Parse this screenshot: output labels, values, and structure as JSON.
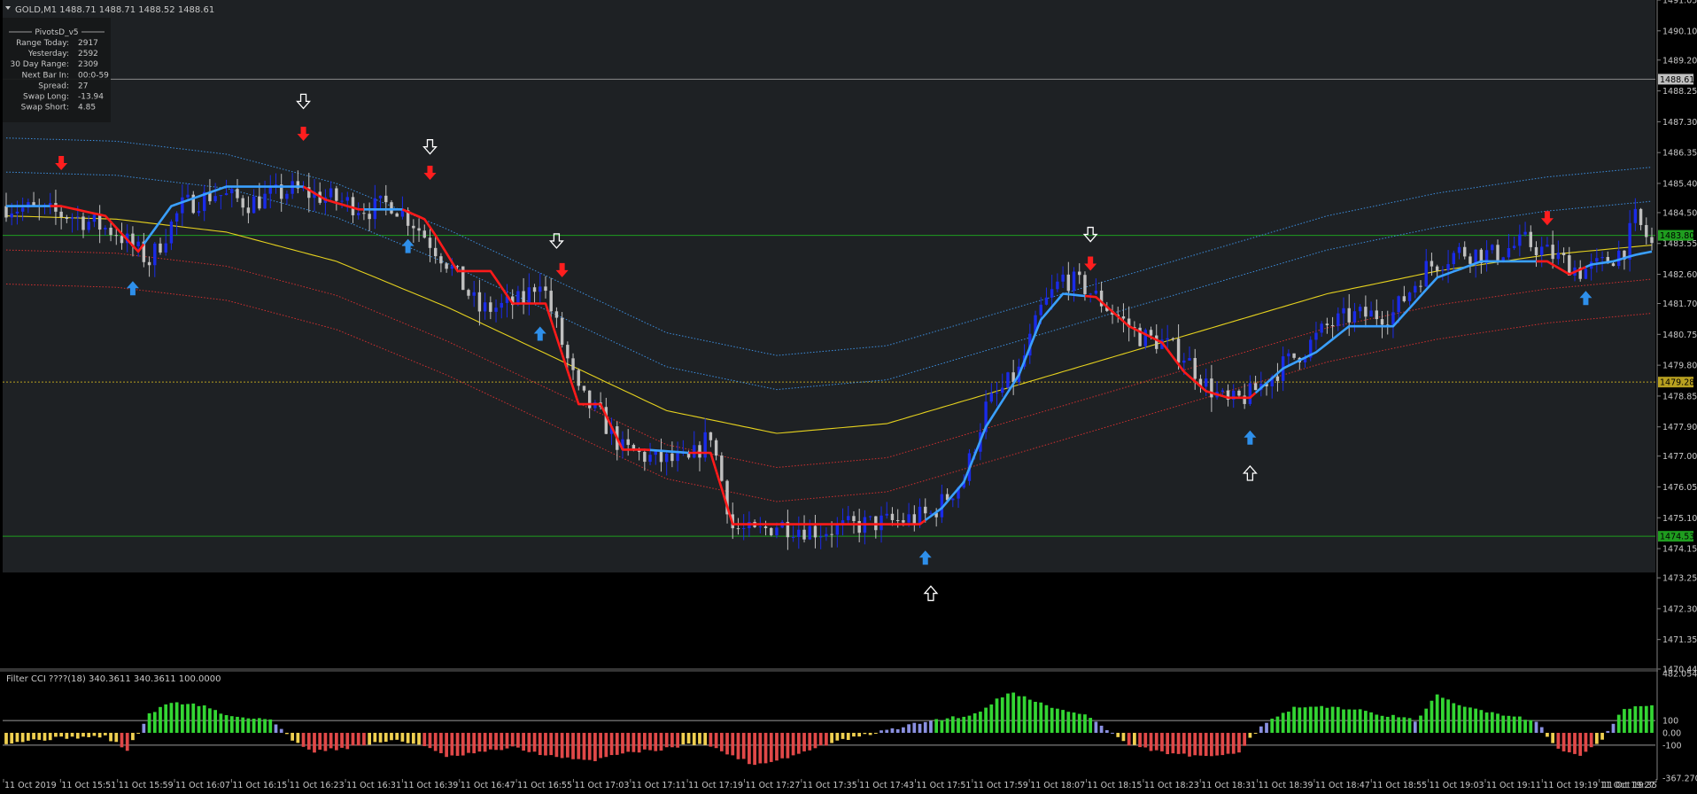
{
  "chart_data": {
    "type": "candlestick",
    "symbol_header": "GOLD,M1  1488.71 1488.71 1488.52 1488.61",
    "price_axis": {
      "range": [
        1470.44,
        1491.05
      ],
      "ticks": [
        "1491.05",
        "1490.10",
        "1489.20",
        "1488.25",
        "1487.30",
        "1486.35",
        "1485.40",
        "1484.50",
        "1483.55",
        "1482.60",
        "1481.70",
        "1480.75",
        "1479.80",
        "1478.85",
        "1477.90",
        "1477.00",
        "1476.05",
        "1475.10",
        "1474.15",
        "1473.25",
        "1472.30",
        "1471.35",
        "1470.44"
      ],
      "badges": [
        {
          "value": 1488.61,
          "label": "1488.61",
          "color": "#c0c0c0",
          "text_color": "#000000"
        },
        {
          "value": 1483.8,
          "label": "1483.80",
          "color": "#1f9d1f",
          "text_color": "#000000"
        },
        {
          "value": 1479.28,
          "label": "1479.28",
          "color": "#b8a020",
          "text_color": "#000000"
        },
        {
          "value": 1474.53,
          "label": "1474.53",
          "color": "#1f9d1f",
          "text_color": "#000000"
        }
      ]
    },
    "horizontal_levels": [
      {
        "value": 1488.61,
        "color": "#8a8a8a",
        "style": "solid"
      },
      {
        "value": 1483.8,
        "color": "#1f9d1f",
        "style": "solid"
      },
      {
        "value": 1479.28,
        "color": "#b8a020",
        "style": "dotted"
      },
      {
        "value": 1474.53,
        "color": "#1f9d1f",
        "style": "solid"
      }
    ],
    "pivots_panel": {
      "title": "PivotsD_v5",
      "rows": [
        {
          "label": "Range Today:",
          "value": "2917"
        },
        {
          "label": "Yesterday:",
          "value": "2592"
        },
        {
          "label": "30 Day Range:",
          "value": "2309"
        },
        {
          "label": "Next Bar In:",
          "value": "00:0-59"
        },
        {
          "label": "Spread:",
          "value": "27"
        },
        {
          "label": "Swap Long:",
          "value": "-13.94"
        },
        {
          "label": "Swap Short:",
          "value": "4.85"
        }
      ]
    },
    "time_axis": [
      "11 Oct 2019",
      "11 Oct 15:51",
      "11 Oct 15:59",
      "11 Oct 16:07",
      "11 Oct 16:15",
      "11 Oct 16:23",
      "11 Oct 16:31",
      "11 Oct 16:39",
      "11 Oct 16:47",
      "11 Oct 16:55",
      "11 Oct 17:03",
      "11 Oct 17:11",
      "11 Oct 17:19",
      "11 Oct 17:27",
      "11 Oct 17:35",
      "11 Oct 17:43",
      "11 Oct 17:51",
      "11 Oct 17:59",
      "11 Oct 18:07",
      "11 Oct 18:15",
      "11 Oct 18:23",
      "11 Oct 18:31",
      "11 Oct 18:39",
      "11 Oct 18:47",
      "11 Oct 18:55",
      "11 Oct 19:03",
      "11 Oct 19:11",
      "11 Oct 19:19",
      "11 Oct 19:27",
      "11 Oct 19:35"
    ],
    "close_path": [
      [
        0,
        1484.7
      ],
      [
        12,
        1484.4
      ],
      [
        20,
        1483.9
      ],
      [
        26,
        1483.0
      ],
      [
        32,
        1484.7
      ],
      [
        38,
        1485.1
      ],
      [
        44,
        1484.8
      ],
      [
        52,
        1485.2
      ],
      [
        60,
        1484.9
      ],
      [
        66,
        1484.6
      ],
      [
        70,
        1484.8
      ],
      [
        74,
        1484.2
      ],
      [
        80,
        1483.0
      ],
      [
        86,
        1481.5
      ],
      [
        90,
        1481.6
      ],
      [
        94,
        1481.8
      ],
      [
        97,
        1482.5
      ],
      [
        100,
        1481.0
      ],
      [
        104,
        1478.9
      ],
      [
        108,
        1478.2
      ],
      [
        112,
        1477.2
      ],
      [
        118,
        1476.9
      ],
      [
        124,
        1476.8
      ],
      [
        128,
        1477.7
      ],
      [
        132,
        1474.8
      ],
      [
        136,
        1474.6
      ],
      [
        140,
        1474.9
      ],
      [
        148,
        1474.7
      ],
      [
        156,
        1474.9
      ],
      [
        162,
        1475.0
      ],
      [
        168,
        1475.2
      ],
      [
        174,
        1476.3
      ],
      [
        178,
        1478.5
      ],
      [
        184,
        1479.6
      ],
      [
        188,
        1481.5
      ],
      [
        192,
        1482.5
      ],
      [
        196,
        1482.2
      ],
      [
        200,
        1481.6
      ],
      [
        206,
        1480.7
      ],
      [
        210,
        1480.5
      ],
      [
        214,
        1480.1
      ],
      [
        218,
        1479.2
      ],
      [
        222,
        1478.6
      ],
      [
        226,
        1478.9
      ],
      [
        232,
        1479.8
      ],
      [
        236,
        1480.3
      ],
      [
        240,
        1481.0
      ],
      [
        244,
        1481.3
      ],
      [
        252,
        1481.4
      ],
      [
        258,
        1482.8
      ],
      [
        264,
        1483.3
      ],
      [
        270,
        1483.2
      ],
      [
        276,
        1483.6
      ],
      [
        282,
        1483.1
      ],
      [
        286,
        1482.7
      ],
      [
        290,
        1482.9
      ],
      [
        294,
        1483.4
      ],
      [
        296,
        1484.3
      ],
      [
        299,
        1483.5
      ]
    ],
    "trend_line": [
      [
        0,
        1484.7
      ],
      [
        10,
        1484.7
      ],
      [
        18,
        1484.4
      ],
      [
        24,
        1483.3
      ],
      [
        30,
        1484.7
      ],
      [
        40,
        1485.3
      ],
      [
        48,
        1485.3
      ],
      [
        54,
        1485.3
      ],
      [
        58,
        1484.9
      ],
      [
        64,
        1484.6
      ],
      [
        72,
        1484.6
      ],
      [
        76,
        1484.3
      ],
      [
        78,
        1483.8
      ],
      [
        82,
        1482.7
      ],
      [
        88,
        1482.7
      ],
      [
        92,
        1481.7
      ],
      [
        98,
        1481.7
      ],
      [
        104,
        1478.6
      ],
      [
        108,
        1478.6
      ],
      [
        112,
        1477.2
      ],
      [
        116,
        1477.2
      ],
      [
        124,
        1477.1
      ],
      [
        128,
        1477.1
      ],
      [
        132,
        1474.9
      ],
      [
        140,
        1474.9
      ],
      [
        150,
        1474.9
      ],
      [
        158,
        1474.9
      ],
      [
        166,
        1474.9
      ],
      [
        170,
        1475.4
      ],
      [
        174,
        1476.2
      ],
      [
        178,
        1477.9
      ],
      [
        184,
        1479.5
      ],
      [
        188,
        1481.2
      ],
      [
        192,
        1482.0
      ],
      [
        198,
        1481.9
      ],
      [
        204,
        1481.0
      ],
      [
        210,
        1480.5
      ],
      [
        214,
        1479.6
      ],
      [
        218,
        1479.0
      ],
      [
        222,
        1478.8
      ],
      [
        226,
        1478.8
      ],
      [
        232,
        1479.7
      ],
      [
        238,
        1480.2
      ],
      [
        244,
        1481.0
      ],
      [
        252,
        1481.0
      ],
      [
        260,
        1482.5
      ],
      [
        268,
        1483.0
      ],
      [
        276,
        1483.0
      ],
      [
        280,
        1483.0
      ],
      [
        284,
        1482.6
      ],
      [
        288,
        1482.9
      ],
      [
        292,
        1483.0
      ],
      [
        296,
        1483.2
      ],
      [
        299,
        1483.3
      ]
    ],
    "trend_segments_red": [
      [
        8,
        24
      ],
      [
        54,
        64
      ],
      [
        72,
        116
      ],
      [
        124,
        166
      ],
      [
        196,
        226
      ],
      [
        278,
        286
      ]
    ],
    "ma_line": [
      [
        0,
        1484.4
      ],
      [
        20,
        1484.3
      ],
      [
        40,
        1483.9
      ],
      [
        60,
        1483.0
      ],
      [
        80,
        1481.6
      ],
      [
        100,
        1480.0
      ],
      [
        120,
        1478.4
      ],
      [
        140,
        1477.7
      ],
      [
        160,
        1478.0
      ],
      [
        180,
        1479.0
      ],
      [
        200,
        1480.0
      ],
      [
        220,
        1481.0
      ],
      [
        240,
        1482.0
      ],
      [
        260,
        1482.7
      ],
      [
        280,
        1483.2
      ],
      [
        299,
        1483.5
      ]
    ],
    "envelopes": [
      {
        "color": "#3d8fe0",
        "offset": 2.4
      },
      {
        "color": "#3d8fe0",
        "offset": 1.35
      },
      {
        "color": "#d23030",
        "offset": -1.05
      },
      {
        "color": "#d23030",
        "offset": -2.1
      }
    ],
    "arrows": [
      {
        "type": "sell",
        "bar": 10,
        "price": 1486.0
      },
      {
        "type": "sell",
        "bar": 54,
        "price": 1486.9
      },
      {
        "type": "sell-outline",
        "bar": 54,
        "price": 1487.9
      },
      {
        "type": "sell",
        "bar": 77,
        "price": 1485.7
      },
      {
        "type": "sell-outline",
        "bar": 77,
        "price": 1486.5
      },
      {
        "type": "buy",
        "bar": 73,
        "price": 1483.5
      },
      {
        "type": "buy",
        "bar": 23,
        "price": 1482.2
      },
      {
        "type": "sell",
        "bar": 101,
        "price": 1482.7
      },
      {
        "type": "sell-outline",
        "bar": 100,
        "price": 1483.6
      },
      {
        "type": "buy",
        "bar": 97,
        "price": 1480.8
      },
      {
        "type": "buy",
        "bar": 167,
        "price": 1473.9
      },
      {
        "type": "buy-outline",
        "bar": 168,
        "price": 1472.8
      },
      {
        "type": "sell",
        "bar": 197,
        "price": 1482.9
      },
      {
        "type": "sell-outline",
        "bar": 197,
        "price": 1483.8
      },
      {
        "type": "buy",
        "bar": 226,
        "price": 1477.6
      },
      {
        "type": "buy-outline",
        "bar": 226,
        "price": 1476.5
      },
      {
        "type": "sell",
        "bar": 280,
        "price": 1484.3
      },
      {
        "type": "buy",
        "bar": 287,
        "price": 1481.9
      }
    ],
    "indicator": {
      "label": "Filter CCI ????(18)  340.3611 340.3611 100.0000",
      "axis_ticks": [
        "482.0547",
        "100",
        "0.00",
        "-100",
        "-367.2703"
      ],
      "range": [
        -367.27,
        482.05
      ],
      "levels": [
        100,
        -100
      ],
      "colors": {
        "strong_up": "#33d633",
        "up": "#8a90e0",
        "down": "#f0d050",
        "strong_down": "#e04848"
      },
      "path": [
        [
          0,
          -80
        ],
        [
          10,
          -40
        ],
        [
          18,
          -30
        ],
        [
          22,
          -140
        ],
        [
          26,
          150
        ],
        [
          30,
          250
        ],
        [
          36,
          220
        ],
        [
          40,
          140
        ],
        [
          48,
          110
        ],
        [
          52,
          -60
        ],
        [
          56,
          -150
        ],
        [
          62,
          -120
        ],
        [
          70,
          -60
        ],
        [
          76,
          -100
        ],
        [
          80,
          -200
        ],
        [
          86,
          -160
        ],
        [
          92,
          -120
        ],
        [
          100,
          -200
        ],
        [
          106,
          -230
        ],
        [
          112,
          -160
        ],
        [
          118,
          -140
        ],
        [
          126,
          -80
        ],
        [
          130,
          -150
        ],
        [
          136,
          -260
        ],
        [
          142,
          -200
        ],
        [
          150,
          -80
        ],
        [
          160,
          20
        ],
        [
          168,
          100
        ],
        [
          176,
          150
        ],
        [
          182,
          330
        ],
        [
          186,
          280
        ],
        [
          190,
          200
        ],
        [
          196,
          150
        ],
        [
          204,
          -100
        ],
        [
          210,
          -160
        ],
        [
          218,
          -200
        ],
        [
          224,
          -150
        ],
        [
          228,
          60
        ],
        [
          234,
          200
        ],
        [
          242,
          210
        ],
        [
          250,
          150
        ],
        [
          256,
          100
        ],
        [
          260,
          300
        ],
        [
          264,
          220
        ],
        [
          272,
          150
        ],
        [
          278,
          100
        ],
        [
          282,
          -140
        ],
        [
          286,
          -180
        ],
        [
          290,
          -60
        ],
        [
          294,
          200
        ],
        [
          299,
          220
        ]
      ]
    }
  }
}
